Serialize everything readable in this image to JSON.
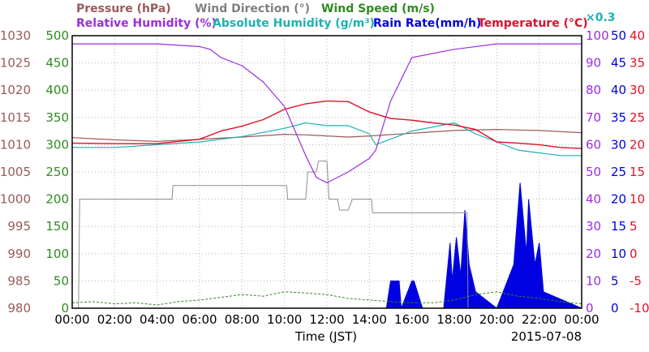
{
  "chart_data": {
    "type": "line",
    "xlabel": "Time (JST)",
    "date": "2015-07-08",
    "x_ticks": [
      "00:00",
      "02:00",
      "04:00",
      "06:00",
      "08:00",
      "10:00",
      "12:00",
      "14:00",
      "16:00",
      "18:00",
      "20:00",
      "22:00",
      "00:00"
    ],
    "x_range_hours": [
      0,
      24
    ],
    "grid": true,
    "legend": [
      {
        "label": "Pressure (hPa)",
        "color": "#9b5a5a"
      },
      {
        "label": "Wind Direction (°)",
        "color": "#808080"
      },
      {
        "label": "Wind Speed (m/s)",
        "color": "#2e8b1e"
      },
      {
        "label": "Relative Humidity (%)",
        "color": "#9a2ee0"
      },
      {
        "label": "Absolute Humidity (g/m³)",
        "color": "#20b0b0"
      },
      {
        "label": "×0.3",
        "color": "#20b0b0"
      },
      {
        "label": "Rain Rate(mm/h)",
        "color": "#0000e0"
      },
      {
        "label": "Temperature (°C)",
        "color": "#e0102a"
      }
    ],
    "axes": {
      "pressure": {
        "color": "#9b5a5a",
        "range": [
          980,
          1030
        ],
        "ticks": [
          "980",
          "985",
          "990",
          "995",
          "1000",
          "1005",
          "1010",
          "1015",
          "1020",
          "1025",
          "1030"
        ]
      },
      "direction": {
        "color": "#2e8b1e",
        "range": [
          0,
          500
        ],
        "ticks": [
          "0",
          "50",
          "100",
          "150",
          "200",
          "250",
          "300",
          "350",
          "400",
          "450",
          "500"
        ]
      },
      "humidity": {
        "color": "#9a2ee0",
        "range": [
          0,
          100
        ],
        "ticks": [
          "0",
          "10",
          "20",
          "30",
          "40",
          "50",
          "60",
          "70",
          "80",
          "90",
          "100"
        ]
      },
      "rain": {
        "color": "#0000e0",
        "range": [
          0,
          50
        ],
        "ticks": [
          "0",
          "5",
          "10",
          "15",
          "20",
          "25",
          "30",
          "35",
          "40",
          "45",
          "50"
        ]
      },
      "temperature": {
        "color": "#e0102a",
        "range": [
          -10,
          40
        ],
        "ticks": [
          "-10",
          "-5",
          "0",
          "5",
          "10",
          "15",
          "20",
          "25",
          "30",
          "35",
          "40"
        ]
      }
    },
    "series": [
      {
        "name": "Pressure (hPa)",
        "axis": "pressure",
        "x": [
          0,
          2,
          4,
          6,
          8,
          10,
          11,
          12,
          13,
          14,
          16,
          18,
          20,
          22,
          24
        ],
        "y": [
          1011.3,
          1010.9,
          1010.6,
          1011.0,
          1011.4,
          1011.9,
          1011.8,
          1011.6,
          1011.4,
          1011.6,
          1012.1,
          1012.6,
          1012.8,
          1012.6,
          1012.2
        ]
      },
      {
        "name": "Wind Direction (°)",
        "axis": "direction",
        "x": [
          0,
          0.3,
          0.35,
          4.7,
          4.75,
          10.1,
          10.15,
          11.0,
          11.1,
          11.5,
          11.6,
          12.0,
          12.1,
          12.5,
          12.6,
          13.0,
          13.2,
          14.1,
          14.15,
          18.6,
          18.65,
          24
        ],
        "y": [
          0,
          0,
          200,
          200,
          225,
          225,
          200,
          200,
          250,
          250,
          270,
          270,
          200,
          200,
          180,
          180,
          200,
          200,
          175,
          175,
          0,
          0
        ]
      },
      {
        "name": "Wind Speed (m/s)",
        "axis": "direction",
        "x": [
          0,
          1,
          2,
          3,
          4,
          5,
          6,
          7,
          8,
          9,
          10,
          11,
          12,
          13,
          14,
          15,
          16,
          17,
          18,
          19,
          20,
          21,
          22,
          23,
          24
        ],
        "y": [
          10,
          12,
          8,
          10,
          6,
          12,
          15,
          20,
          25,
          22,
          30,
          28,
          25,
          18,
          15,
          12,
          10,
          10,
          15,
          25,
          30,
          22,
          18,
          12,
          8
        ]
      },
      {
        "name": "Relative Humidity (%)",
        "axis": "humidity",
        "x": [
          0,
          4,
          6,
          6.5,
          7,
          8,
          9,
          10,
          11,
          11.5,
          12,
          13,
          14,
          14.3,
          15,
          16,
          18,
          20,
          22,
          24
        ],
        "y": [
          97,
          97,
          96,
          95,
          92,
          89,
          83,
          74,
          56,
          48,
          46,
          50,
          55,
          58,
          76,
          92,
          95,
          97,
          97,
          97
        ]
      },
      {
        "name": "Absolute Humidity (g/m³)",
        "axis": "humidity",
        "x": [
          0,
          2,
          4,
          6,
          8,
          10,
          11,
          12,
          13,
          14,
          14.3,
          16,
          18,
          19,
          20,
          21,
          22,
          23,
          24
        ],
        "y": [
          59,
          59,
          60,
          61,
          63,
          66,
          68,
          67,
          67,
          64,
          60,
          65,
          68,
          64,
          61,
          58,
          57,
          56,
          56
        ]
      },
      {
        "name": "Rain Rate(mm/h)",
        "axis": "rain",
        "type": "area",
        "x": [
          0,
          14.8,
          15.0,
          15.4,
          15.5,
          16.0,
          16.1,
          16.5,
          17.5,
          17.8,
          17.9,
          18.1,
          18.3,
          18.5,
          18.7,
          19.0,
          20.0,
          20.5,
          20.8,
          21.0,
          21.1,
          21.4,
          21.5,
          21.8,
          22.0,
          22.2,
          24
        ],
        "y": [
          0,
          0,
          5,
          5,
          0,
          5,
          5,
          0,
          0,
          12,
          5,
          13,
          6,
          18,
          8,
          3,
          0,
          5,
          8,
          18,
          23,
          10,
          20,
          8,
          12,
          3,
          0
        ]
      },
      {
        "name": "Temperature (°C)",
        "axis": "temperature",
        "x": [
          0,
          2,
          4,
          6,
          7,
          8,
          9,
          10,
          11,
          12,
          13,
          14,
          15,
          16,
          17,
          18,
          19,
          20,
          21,
          22,
          23,
          24
        ],
        "y": [
          20.3,
          20.2,
          20.2,
          21.0,
          22.5,
          23.4,
          24.6,
          26.5,
          27.5,
          28.0,
          27.9,
          26.0,
          24.8,
          24.5,
          24.0,
          23.6,
          22.8,
          20.5,
          20.3,
          20.0,
          19.5,
          19.3
        ]
      }
    ]
  }
}
